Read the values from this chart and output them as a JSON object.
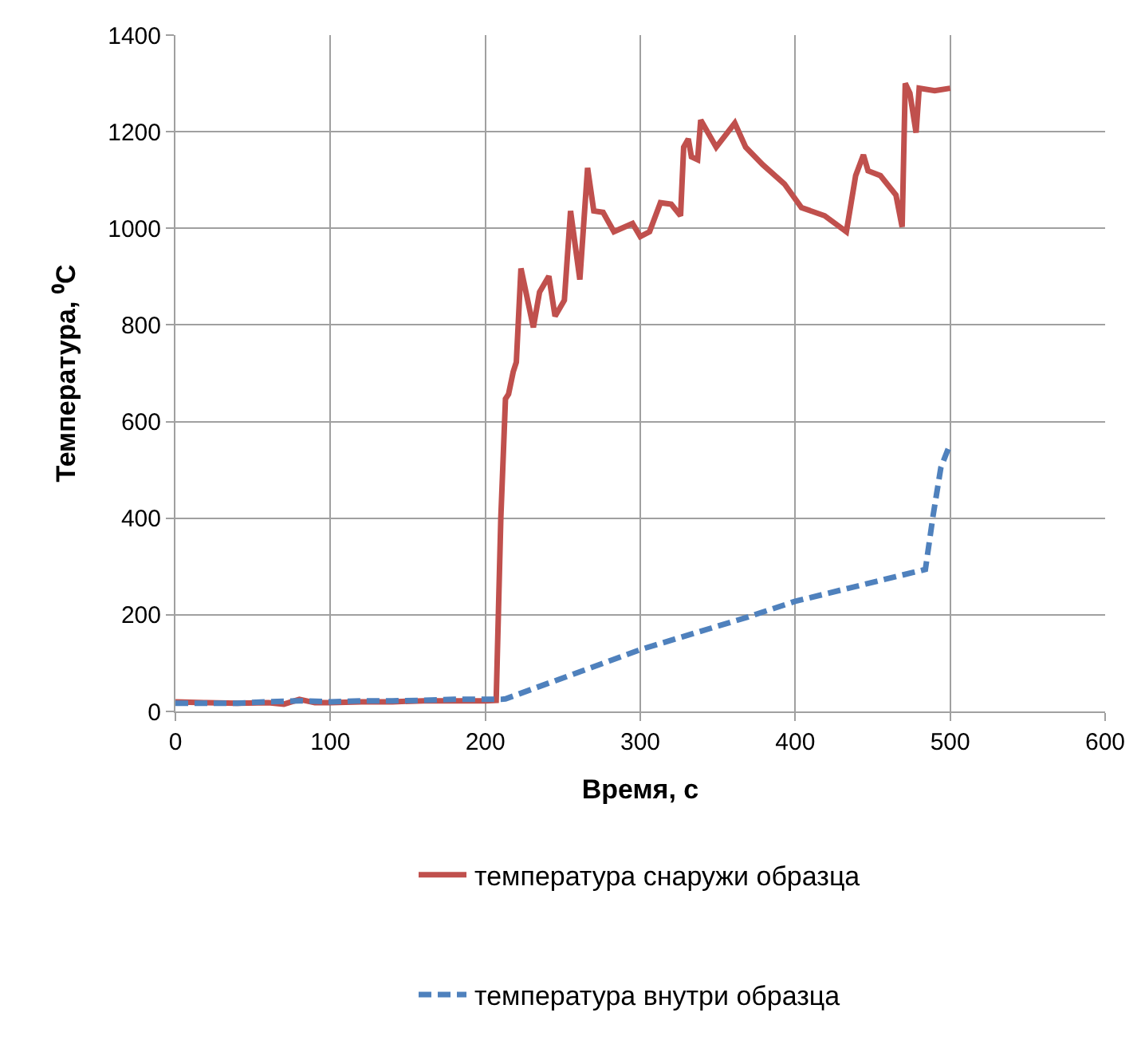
{
  "chart_data": {
    "type": "line",
    "xlabel": "Время, с",
    "ylabel": "Температура, ⁰C",
    "xlim": [
      0,
      600
    ],
    "xticks": [
      0,
      100,
      200,
      300,
      400,
      500,
      600
    ],
    "ylim": [
      0,
      1400
    ],
    "yticks": [
      0,
      200,
      400,
      600,
      800,
      1000,
      1200,
      1400
    ],
    "grid": true,
    "legend": "bottom",
    "marker": "none",
    "series": [
      {
        "name": "температура снаружи образца",
        "color": "#c0504d",
        "line_style": "solid",
        "x": [
          0,
          20,
          40,
          60,
          70,
          80,
          90,
          100,
          120,
          140,
          160,
          180,
          200,
          207,
          210,
          213,
          215,
          218,
          220,
          223,
          231,
          235,
          241,
          245,
          251,
          255,
          261,
          266,
          270,
          276,
          283,
          295,
          300,
          306,
          313,
          320,
          326,
          328,
          331,
          333,
          337,
          339,
          349,
          361,
          368,
          379,
          393,
          404,
          419,
          433,
          439,
          444,
          447,
          455,
          465,
          469,
          471,
          474,
          478,
          480,
          490,
          500
        ],
        "values": [
          20,
          18,
          17,
          18,
          15,
          25,
          18,
          18,
          20,
          20,
          22,
          22,
          22,
          23,
          400,
          647,
          657,
          703,
          723,
          917,
          795,
          868,
          901,
          818,
          851,
          1036,
          894,
          1125,
          1036,
          1033,
          993,
          1010,
          983,
          993,
          1053,
          1050,
          1026,
          1168,
          1185,
          1148,
          1142,
          1224,
          1168,
          1218,
          1168,
          1132,
          1092,
          1043,
          1026,
          993,
          1109,
          1152,
          1119,
          1109,
          1069,
          1003,
          1300,
          1280,
          1198,
          1290,
          1285,
          1290
        ]
      },
      {
        "name": "температура внутри образца",
        "color": "#4f81bd",
        "line_style": "dashed",
        "x": [
          0,
          20,
          40,
          60,
          80,
          100,
          120,
          140,
          160,
          180,
          200,
          210,
          213,
          301,
          369,
          400,
          484,
          489,
          494,
          500
        ],
        "values": [
          17,
          17,
          17,
          20,
          22,
          20,
          22,
          22,
          23,
          25,
          25,
          25,
          26,
          129,
          195,
          228,
          294,
          406,
          505,
          554
        ]
      }
    ]
  }
}
